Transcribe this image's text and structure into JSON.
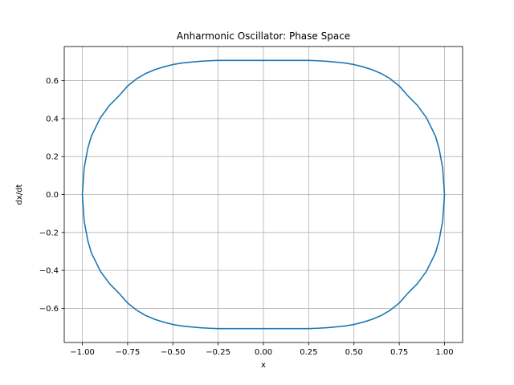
{
  "chart_data": {
    "type": "line",
    "title": "Anharmonic Oscillator: Phase Space",
    "xlabel": "x",
    "ylabel": "dx/dt",
    "xlim": [
      -1.1,
      1.1
    ],
    "ylim": [
      -0.78,
      0.78
    ],
    "grid": true,
    "x_ticks": [
      -1.0,
      -0.75,
      -0.5,
      -0.25,
      0.0,
      0.25,
      0.5,
      0.75,
      1.0
    ],
    "x_tick_labels": [
      "−1.00",
      "−0.75",
      "−0.50",
      "−0.25",
      "0.00",
      "0.25",
      "0.50",
      "0.75",
      "1.00"
    ],
    "y_ticks": [
      -0.6,
      -0.4,
      -0.2,
      0.0,
      0.2,
      0.4,
      0.6
    ],
    "y_tick_labels": [
      "−0.6",
      "−0.4",
      "−0.2",
      "0.0",
      "0.2",
      "0.4",
      "0.6"
    ],
    "series": [
      {
        "color": "#1f77b4",
        "x": [
          -1.0,
          -0.99,
          -0.97,
          -0.95,
          -0.9,
          -0.85,
          -0.8,
          -0.75,
          -0.7,
          -0.65,
          -0.6,
          -0.55,
          -0.5,
          -0.45,
          -0.4,
          -0.35,
          -0.3,
          -0.25,
          -0.2,
          -0.15,
          -0.1,
          -0.05,
          0.0,
          0.05,
          0.1,
          0.15,
          0.2,
          0.25,
          0.3,
          0.35,
          0.4,
          0.45,
          0.5,
          0.55,
          0.6,
          0.65,
          0.7,
          0.75,
          0.8,
          0.85,
          0.9,
          0.95,
          0.97,
          0.99,
          1.0,
          0.99,
          0.97,
          0.95,
          0.9,
          0.85,
          0.8,
          0.75,
          0.7,
          0.65,
          0.6,
          0.55,
          0.5,
          0.45,
          0.4,
          0.35,
          0.3,
          0.25,
          0.2,
          0.15,
          0.1,
          0.05,
          0.0,
          -0.05,
          -0.1,
          -0.15,
          -0.2,
          -0.25,
          -0.3,
          -0.35,
          -0.4,
          -0.45,
          -0.5,
          -0.55,
          -0.6,
          -0.65,
          -0.7,
          -0.75,
          -0.8,
          -0.85,
          -0.9,
          -0.95,
          -0.97,
          -0.99,
          -1.0
        ],
        "y": [
          0.0,
          0.14,
          0.243,
          0.308,
          0.405,
          0.47,
          0.518,
          0.572,
          0.61,
          0.638,
          0.658,
          0.673,
          0.685,
          0.693,
          0.698,
          0.702,
          0.705,
          0.707,
          0.707,
          0.707,
          0.707,
          0.707,
          0.707,
          0.707,
          0.707,
          0.707,
          0.707,
          0.707,
          0.705,
          0.702,
          0.698,
          0.693,
          0.685,
          0.673,
          0.658,
          0.638,
          0.61,
          0.572,
          0.518,
          0.47,
          0.405,
          0.308,
          0.243,
          0.14,
          0.0,
          -0.14,
          -0.243,
          -0.308,
          -0.405,
          -0.47,
          -0.518,
          -0.572,
          -0.61,
          -0.638,
          -0.658,
          -0.673,
          -0.685,
          -0.693,
          -0.698,
          -0.702,
          -0.705,
          -0.707,
          -0.707,
          -0.707,
          -0.707,
          -0.707,
          -0.707,
          -0.707,
          -0.707,
          -0.707,
          -0.707,
          -0.707,
          -0.705,
          -0.702,
          -0.698,
          -0.693,
          -0.685,
          -0.673,
          -0.658,
          -0.638,
          -0.61,
          -0.572,
          -0.518,
          -0.47,
          -0.405,
          -0.308,
          -0.243,
          -0.14,
          0.0
        ]
      }
    ],
    "colors": {
      "grid": "#b0b0b0",
      "axes": "#000000"
    }
  }
}
